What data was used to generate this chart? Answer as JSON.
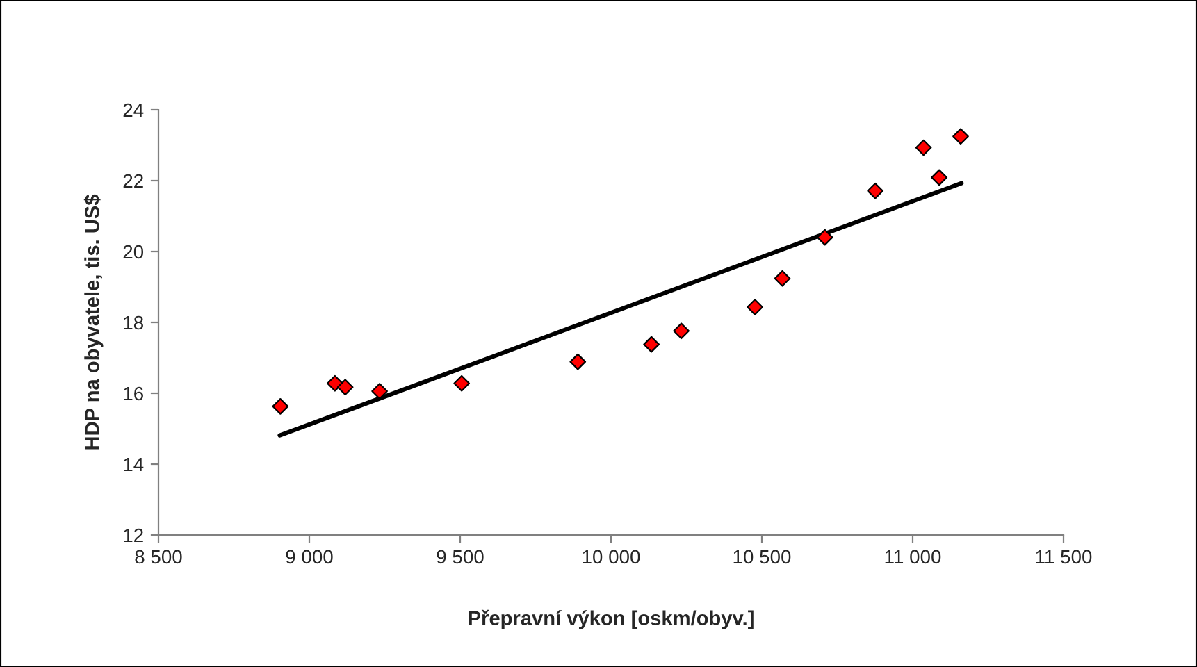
{
  "chart_data": {
    "type": "scatter",
    "xlabel": "Přepravní výkon [oskm/obyv.]",
    "ylabel": "HDP na obyvatele, tis. US$",
    "series": [
      {
        "color": "#ff0000",
        "marker": "diamond",
        "x": [
          8904,
          9085,
          9119,
          9233,
          9505,
          9890,
          10134,
          10233,
          10477,
          10568,
          10709,
          10876,
          11036,
          11088,
          11159
        ],
        "values": [
          15.63,
          16.28,
          16.17,
          16.06,
          16.28,
          16.89,
          17.38,
          17.76,
          18.43,
          19.24,
          20.4,
          21.71,
          22.93,
          22.09,
          23.25
        ]
      },
      {
        "type": "line",
        "color": "#000000",
        "marker": "none",
        "line_style": "solid",
        "x": [
          8902,
          11162
        ],
        "values": [
          14.81,
          21.93
        ]
      }
    ],
    "xlim": [
      8500,
      11500
    ],
    "xticks": [
      {
        "value": 8500,
        "label": "8 500"
      },
      {
        "value": 9000,
        "label": "9 000"
      },
      {
        "value": 9500,
        "label": "9 500"
      },
      {
        "value": 10000,
        "label": "10 000"
      },
      {
        "value": 10500,
        "label": "10 500"
      },
      {
        "value": 11000,
        "label": "11 000"
      },
      {
        "value": 11500,
        "label": "11 500"
      }
    ],
    "ylim": [
      12,
      24
    ],
    "yticks": [
      12,
      14,
      16,
      18,
      20,
      22,
      24
    ],
    "grid": false,
    "legend": false
  }
}
